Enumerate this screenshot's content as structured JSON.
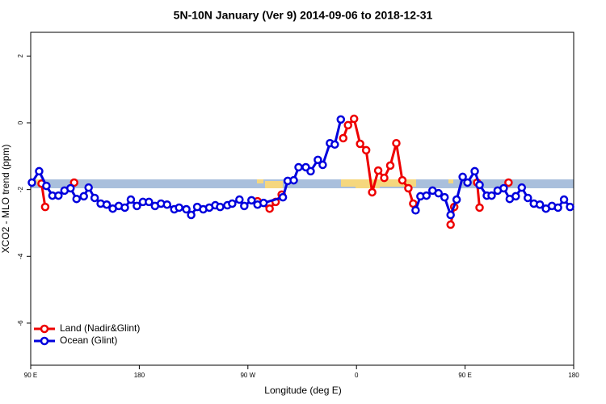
{
  "chart_data": {
    "type": "line",
    "title": "5N-10N January (Ver 9)   2014-09-06 to 2018-12-31",
    "x_label": "Longitude (deg E)",
    "y_label": "XCO2 - MLO trend (ppm)",
    "xlim": [
      90,
      540
    ],
    "ylim": [
      -7.26,
      2.71
    ],
    "xticks": [
      {
        "value": 90,
        "label": "90 E"
      },
      180,
      {
        "value": 270,
        "label": "90 W"
      },
      {
        "value": 360,
        "label": "0"
      },
      {
        "value": 450,
        "label": "90 E"
      },
      {
        "value": 540,
        "label": "180"
      }
    ],
    "yticks": [
      2,
      0,
      -2,
      -4,
      -6
    ],
    "legend": "bottom-left",
    "series": [
      {
        "name": "Land (Nadir&Glint)",
        "color": "#ee0000",
        "x": [
          99,
          102,
          null,
          126,
          null,
          278,
          288,
          293,
          298,
          null,
          349,
          353,
          358,
          363,
          368,
          373,
          378,
          383,
          388,
          393,
          398,
          403,
          407,
          null,
          438,
          441,
          null,
          460,
          462,
          null,
          486
        ],
        "values": [
          -1.82,
          -2.52,
          null,
          -1.79,
          null,
          -2.35,
          -2.57,
          -2.37,
          -2.15,
          null,
          -0.46,
          -0.07,
          0.12,
          -0.63,
          -0.82,
          -2.08,
          -1.43,
          -1.65,
          -1.28,
          -0.61,
          -1.72,
          -1.96,
          -2.42,
          null,
          -3.05,
          -2.52,
          null,
          -1.79,
          -2.54,
          null,
          -1.79
        ]
      },
      {
        "name": "Ocean (Glint)",
        "color": "#0000dd",
        "x": [
          91,
          97,
          103,
          108,
          113,
          118,
          123,
          128,
          134,
          138,
          143,
          148,
          153,
          158,
          163,
          168,
          173,
          178,
          183,
          188,
          193,
          198,
          203,
          209,
          213,
          219,
          223,
          228,
          233,
          238,
          243,
          247,
          253,
          257,
          263,
          267,
          273,
          278,
          283,
          299,
          303,
          308,
          312,
          318,
          322,
          328,
          332,
          338,
          342,
          347,
          null,
          409,
          413,
          418,
          423,
          428,
          433,
          438,
          443,
          448,
          452,
          458,
          462,
          468,
          472,
          477,
          482,
          487,
          492,
          497,
          502,
          507,
          512,
          517,
          522,
          527,
          532,
          537
        ],
        "values": [
          -1.79,
          -1.45,
          -1.89,
          -2.18,
          -2.18,
          -2.03,
          -1.96,
          -2.28,
          -2.2,
          -1.94,
          -2.25,
          -2.42,
          -2.45,
          -2.57,
          -2.49,
          -2.54,
          -2.3,
          -2.49,
          -2.37,
          -2.37,
          -2.49,
          -2.42,
          -2.45,
          -2.59,
          -2.54,
          -2.59,
          -2.76,
          -2.52,
          -2.59,
          -2.54,
          -2.47,
          -2.52,
          -2.47,
          -2.42,
          -2.3,
          -2.49,
          -2.32,
          -2.45,
          -2.4,
          -2.23,
          -1.74,
          -1.72,
          -1.33,
          -1.33,
          -1.45,
          -1.11,
          -1.26,
          -0.61,
          -0.65,
          0.1,
          null,
          -2.62,
          -2.2,
          -2.18,
          -2.03,
          -2.11,
          -2.23,
          -2.76,
          -2.3,
          -1.62,
          -1.79,
          -1.45,
          -1.86,
          -2.18,
          -2.18,
          -2.03,
          -1.96,
          -2.28,
          -2.2,
          -1.94,
          -2.25,
          -2.42,
          -2.45,
          -2.57,
          -2.49,
          -2.54,
          -2.3,
          -2.52
        ]
      }
    ]
  }
}
